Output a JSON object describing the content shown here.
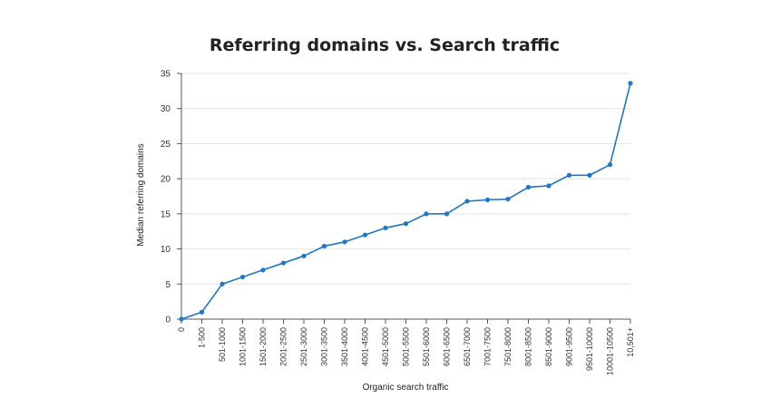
{
  "chart_data": {
    "type": "line",
    "title": "Referring domains vs. Search traffic",
    "xlabel": "Organic search traffic",
    "ylabel": "Median referring domains",
    "ylim": [
      0,
      35
    ],
    "yticks": [
      0,
      5,
      10,
      15,
      20,
      25,
      30,
      35
    ],
    "grid": true,
    "legend": "none",
    "colors": {
      "line": "#1f77c9",
      "grid": "#e3e3e3",
      "axis": "#555555"
    },
    "categories": [
      "0",
      "1-500",
      "501-1000",
      "1001-1500",
      "1501-2000",
      "2001-2500",
      "2501-3000",
      "3001-3500",
      "3501-4000",
      "4001-4500",
      "4501-5000",
      "5001-5500",
      "5501-6000",
      "6001-6500",
      "6501-7000",
      "7001-7500",
      "7501-8000",
      "8001-8500",
      "8501-9000",
      "9001-9500",
      "9501-10000",
      "10001-10500",
      "10,501+"
    ],
    "series": [
      {
        "values": [
          0,
          1,
          5,
          6,
          7,
          8,
          9,
          10.4,
          11,
          12,
          13,
          13.6,
          15,
          15,
          16.8,
          17,
          17.1,
          18.8,
          19,
          20.5,
          20.5,
          22,
          33.6
        ]
      }
    ]
  }
}
